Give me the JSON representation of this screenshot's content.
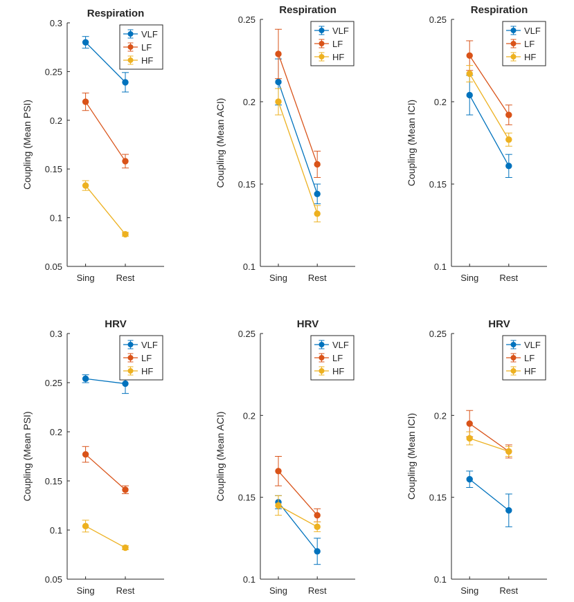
{
  "colors": {
    "VLF": "#0072BD",
    "LF": "#D95319",
    "HF": "#EDB120",
    "axis": "#262626"
  },
  "chart_data": [
    {
      "type": "line",
      "title": "Respiration",
      "ylabel": "Coupling (Mean PSI)",
      "xlabel": "",
      "categories": [
        "Sing",
        "Rest"
      ],
      "ylim": [
        0.05,
        0.3
      ],
      "yticks": [
        0.05,
        0.1,
        0.15,
        0.2,
        0.25,
        0.3
      ],
      "ytick_labels": [
        "0.05",
        "0.1",
        "0.15",
        "0.2",
        "0.25",
        "0.3"
      ],
      "legend": "top-right",
      "series": [
        {
          "name": "VLF",
          "values": [
            0.28,
            0.239
          ],
          "err": [
            0.006,
            0.01
          ]
        },
        {
          "name": "LF",
          "values": [
            0.219,
            0.158
          ],
          "err": [
            0.009,
            0.007
          ]
        },
        {
          "name": "HF",
          "values": [
            0.133,
            0.083
          ],
          "err": [
            0.005,
            0.002
          ]
        }
      ]
    },
    {
      "type": "line",
      "title": "Respiration",
      "ylabel": "Coupling (Mean ACI)",
      "xlabel": "",
      "categories": [
        "Sing",
        "Rest"
      ],
      "ylim": [
        0.1,
        0.25
      ],
      "yticks": [
        0.1,
        0.15,
        0.2,
        0.25
      ],
      "ytick_labels": [
        "0.1",
        "0.15",
        "0.2",
        "0.25"
      ],
      "legend": "top-right",
      "series": [
        {
          "name": "VLF",
          "values": [
            0.212,
            0.144
          ],
          "err": [
            0.014,
            0.006
          ]
        },
        {
          "name": "LF",
          "values": [
            0.229,
            0.162
          ],
          "err": [
            0.015,
            0.008
          ]
        },
        {
          "name": "HF",
          "values": [
            0.2,
            0.132
          ],
          "err": [
            0.008,
            0.005
          ]
        }
      ]
    },
    {
      "type": "line",
      "title": "Respiration",
      "ylabel": "Coupling (Mean ICI)",
      "xlabel": "",
      "categories": [
        "Sing",
        "Rest"
      ],
      "ylim": [
        0.1,
        0.25
      ],
      "yticks": [
        0.1,
        0.15,
        0.2,
        0.25
      ],
      "ytick_labels": [
        "0.1",
        "0.15",
        "0.2",
        "0.25"
      ],
      "legend": "top-right",
      "series": [
        {
          "name": "VLF",
          "values": [
            0.204,
            0.161
          ],
          "err": [
            0.012,
            0.007
          ]
        },
        {
          "name": "LF",
          "values": [
            0.228,
            0.192
          ],
          "err": [
            0.009,
            0.006
          ]
        },
        {
          "name": "HF",
          "values": [
            0.217,
            0.177
          ],
          "err": [
            0.005,
            0.004
          ]
        }
      ]
    },
    {
      "type": "line",
      "title": "HRV",
      "ylabel": "Coupling (Mean PSI)",
      "xlabel": "",
      "categories": [
        "Sing",
        "Rest"
      ],
      "ylim": [
        0.05,
        0.3
      ],
      "yticks": [
        0.05,
        0.1,
        0.15,
        0.2,
        0.25,
        0.3
      ],
      "ytick_labels": [
        "0.05",
        "0.1",
        "0.15",
        "0.2",
        "0.25",
        "0.3"
      ],
      "legend": "top-right",
      "series": [
        {
          "name": "VLF",
          "values": [
            0.254,
            0.249
          ],
          "err": [
            0.004,
            0.01
          ]
        },
        {
          "name": "LF",
          "values": [
            0.177,
            0.141
          ],
          "err": [
            0.008,
            0.004
          ]
        },
        {
          "name": "HF",
          "values": [
            0.104,
            0.082
          ],
          "err": [
            0.006,
            0.002
          ]
        }
      ]
    },
    {
      "type": "line",
      "title": "HRV",
      "ylabel": "Coupling (Mean ACI)",
      "xlabel": "",
      "categories": [
        "Sing",
        "Rest"
      ],
      "ylim": [
        0.1,
        0.25
      ],
      "yticks": [
        0.1,
        0.15,
        0.2,
        0.25
      ],
      "ytick_labels": [
        "0.1",
        "0.15",
        "0.2",
        "0.25"
      ],
      "legend": "top-right",
      "series": [
        {
          "name": "VLF",
          "values": [
            0.147,
            0.117
          ],
          "err": [
            0.004,
            0.008
          ]
        },
        {
          "name": "LF",
          "values": [
            0.166,
            0.139
          ],
          "err": [
            0.009,
            0.004
          ]
        },
        {
          "name": "HF",
          "values": [
            0.145,
            0.132
          ],
          "err": [
            0.006,
            0.003
          ]
        }
      ]
    },
    {
      "type": "line",
      "title": "HRV",
      "ylabel": "Coupling (Mean ICI)",
      "xlabel": "",
      "categories": [
        "Sing",
        "Rest"
      ],
      "ylim": [
        0.1,
        0.25
      ],
      "yticks": [
        0.1,
        0.15,
        0.2,
        0.25
      ],
      "ytick_labels": [
        "0.1",
        "0.15",
        "0.2",
        "0.25"
      ],
      "legend": "top-right",
      "series": [
        {
          "name": "VLF",
          "values": [
            0.161,
            0.142
          ],
          "err": [
            0.005,
            0.01
          ]
        },
        {
          "name": "LF",
          "values": [
            0.195,
            0.178
          ],
          "err": [
            0.008,
            0.004
          ]
        },
        {
          "name": "HF",
          "values": [
            0.186,
            0.178
          ],
          "err": [
            0.004,
            0.003
          ]
        }
      ]
    }
  ]
}
